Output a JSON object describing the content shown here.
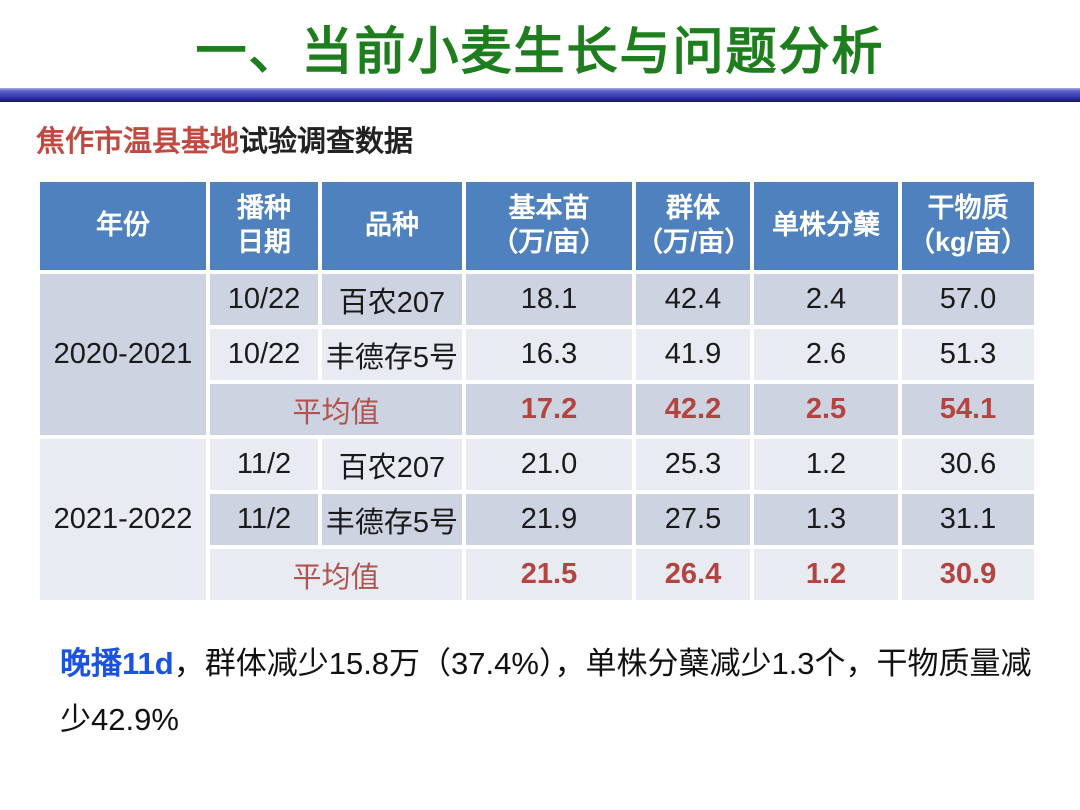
{
  "slide": {
    "title": "一、当前小麦生长与问题分析",
    "subtitle": {
      "highlight": "焦作市温县基地",
      "rest": "试验调查数据"
    },
    "summary": {
      "highlight": "晚播11d",
      "rest": "，群体减少15.8万（37.4%），单株分蘖减少1.3个，干物质量减少42.9%"
    }
  },
  "table": {
    "headers": [
      "年份",
      "播种\n日期",
      "品种",
      "基本苗\n（万/亩）",
      "群体\n（万/亩）",
      "单株分蘖",
      "干物质\n（kg/亩）"
    ],
    "groups": [
      {
        "year": "2020-2021",
        "rows": [
          {
            "date": "10/22",
            "variety": "百农207",
            "values": [
              "18.1",
              "42.4",
              "2.4",
              "57.0"
            ]
          },
          {
            "date": "10/22",
            "variety": "丰德存5号",
            "values": [
              "16.3",
              "41.9",
              "2.6",
              "51.3"
            ]
          }
        ],
        "average": {
          "label": "平均值",
          "values": [
            "17.2",
            "42.2",
            "2.5",
            "54.1"
          ]
        }
      },
      {
        "year": "2021-2022",
        "rows": [
          {
            "date": "11/2",
            "variety": "百农207",
            "values": [
              "21.0",
              "25.3",
              "1.2",
              "30.6"
            ]
          },
          {
            "date": "11/2",
            "variety": "丰德存5号",
            "values": [
              "21.9",
              "27.5",
              "1.3",
              "31.1"
            ]
          }
        ],
        "average": {
          "label": "平均值",
          "values": [
            "21.5",
            "26.4",
            "1.2",
            "30.9"
          ]
        }
      }
    ]
  },
  "colors": {
    "title_green": "#1e7e1e",
    "divider_blue": "#3b3eb4",
    "header_blue": "#4e81bd",
    "band_dark": "#cdd3e1",
    "band_light": "#e9ebf3",
    "average_red": "#b4443f",
    "subtitle_red": "#bf4a42",
    "summary_blue": "#1c52e2"
  }
}
